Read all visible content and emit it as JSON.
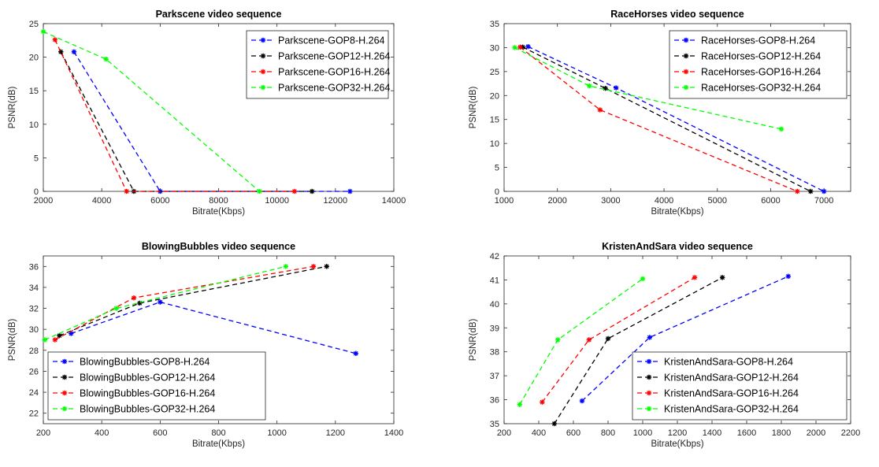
{
  "chart_data": [
    {
      "type": "line",
      "title": "Parkscene video sequence",
      "xlabel": "Bitrate(Kbps)",
      "ylabel": "PSNR(dB)",
      "xlim": [
        2000,
        14000
      ],
      "ylim": [
        0,
        25
      ],
      "xticks": [
        "2000",
        "4000",
        "6000",
        "8000",
        "10000",
        "12000",
        "14000"
      ],
      "yticks": [
        "0",
        "5",
        "10",
        "15",
        "20",
        "25"
      ],
      "legend_position": "top-right",
      "grid": false,
      "series": [
        {
          "name": "Parkscene-GOP8-H.264",
          "color": "#0000ff",
          "x": [
            3050,
            6000,
            12500
          ],
          "y": [
            20.8,
            0,
            0
          ]
        },
        {
          "name": "Parkscene-GOP12-H.264",
          "color": "#000000",
          "x": [
            2600,
            5100,
            11200
          ],
          "y": [
            20.8,
            0,
            0
          ]
        },
        {
          "name": "Parkscene-GOP16-H.264",
          "color": "#ff0000",
          "x": [
            2400,
            4850,
            10600
          ],
          "y": [
            22.6,
            0,
            0
          ]
        },
        {
          "name": "Parkscene-GOP32-H.264",
          "color": "#00ff00",
          "x": [
            2000,
            4150,
            9400
          ],
          "y": [
            23.8,
            19.7,
            0
          ]
        }
      ]
    },
    {
      "type": "line",
      "title": "RaceHorses video sequence",
      "xlabel": "Bitrate(Kbps)",
      "ylabel": "PSNR(dB)",
      "xlim": [
        1000,
        7500
      ],
      "ylim": [
        0,
        35
      ],
      "xticks": [
        "1000",
        "2000",
        "3000",
        "4000",
        "5000",
        "6000",
        "7000"
      ],
      "yticks": [
        "0",
        "5",
        "10",
        "15",
        "20",
        "25",
        "30",
        "35"
      ],
      "legend_position": "top-right",
      "grid": false,
      "series": [
        {
          "name": "RaceHorses-GOP8-H.264",
          "color": "#0000ff",
          "x": [
            1450,
            3100,
            7000
          ],
          "y": [
            30.2,
            21.6,
            0
          ]
        },
        {
          "name": "RaceHorses-GOP12-H.264",
          "color": "#000000",
          "x": [
            1350,
            2900,
            6750
          ],
          "y": [
            30.1,
            21.5,
            0
          ]
        },
        {
          "name": "RaceHorses-GOP16-H.264",
          "color": "#ff0000",
          "x": [
            1300,
            2800,
            6500
          ],
          "y": [
            30.1,
            17.0,
            0
          ]
        },
        {
          "name": "RaceHorses-GOP32-H.264",
          "color": "#00ff00",
          "x": [
            1200,
            2600,
            6200
          ],
          "y": [
            30.0,
            22.0,
            13.0
          ]
        }
      ]
    },
    {
      "type": "line",
      "title": "BlowingBubbles video sequence",
      "xlabel": "Bitrate(Kbps)",
      "ylabel": "PSNR(dB)",
      "xlim": [
        200,
        1400
      ],
      "ylim": [
        21,
        37
      ],
      "xticks": [
        "200",
        "400",
        "600",
        "800",
        "1000",
        "1200",
        "1400"
      ],
      "yticks": [
        "22",
        "24",
        "26",
        "28",
        "30",
        "32",
        "34",
        "36"
      ],
      "legend_position": "bottom-left",
      "grid": false,
      "series": [
        {
          "name": "BlowingBubbles-GOP8-H.264",
          "color": "#0000ff",
          "x": [
            295,
            600,
            1270
          ],
          "y": [
            29.6,
            32.6,
            27.7
          ]
        },
        {
          "name": "BlowingBubbles-GOP12-H.264",
          "color": "#000000",
          "x": [
            255,
            530,
            1170
          ],
          "y": [
            29.4,
            32.5,
            36.0
          ]
        },
        {
          "name": "BlowingBubbles-GOP16-H.264",
          "color": "#ff0000",
          "x": [
            240,
            510,
            1125
          ],
          "y": [
            29.0,
            33.0,
            36.0
          ]
        },
        {
          "name": "BlowingBubbles-GOP32-H.264",
          "color": "#00ff00",
          "x": [
            205,
            450,
            1030
          ],
          "y": [
            29.0,
            32.0,
            36.0
          ]
        }
      ]
    },
    {
      "type": "line",
      "title": "KristenAndSara video sequence",
      "xlabel": "Bitrate(Kbps)",
      "ylabel": "PSNR(dB)",
      "xlim": [
        200,
        2200
      ],
      "ylim": [
        35,
        42
      ],
      "xticks": [
        "200",
        "400",
        "600",
        "800",
        "1000",
        "1200",
        "1400",
        "1600",
        "1800",
        "2000",
        "2200"
      ],
      "yticks": [
        "35",
        "36",
        "37",
        "38",
        "39",
        "40",
        "41",
        "42"
      ],
      "legend_position": "bottom-right",
      "grid": false,
      "series": [
        {
          "name": "KristenAndSara-GOP8-H.264",
          "color": "#0000ff",
          "x": [
            650,
            1040,
            1840
          ],
          "y": [
            35.95,
            38.6,
            41.15
          ]
        },
        {
          "name": "KristenAndSara-GOP12-H.264",
          "color": "#000000",
          "x": [
            490,
            800,
            1460
          ],
          "y": [
            35.0,
            38.55,
            41.1
          ]
        },
        {
          "name": "KristenAndSara-GOP16-H.264",
          "color": "#ff0000",
          "x": [
            420,
            690,
            1300
          ],
          "y": [
            35.9,
            38.5,
            41.1
          ]
        },
        {
          "name": "KristenAndSara-GOP32-H.264",
          "color": "#00ff00",
          "x": [
            290,
            510,
            1000
          ],
          "y": [
            35.8,
            38.5,
            41.05
          ]
        }
      ]
    }
  ]
}
